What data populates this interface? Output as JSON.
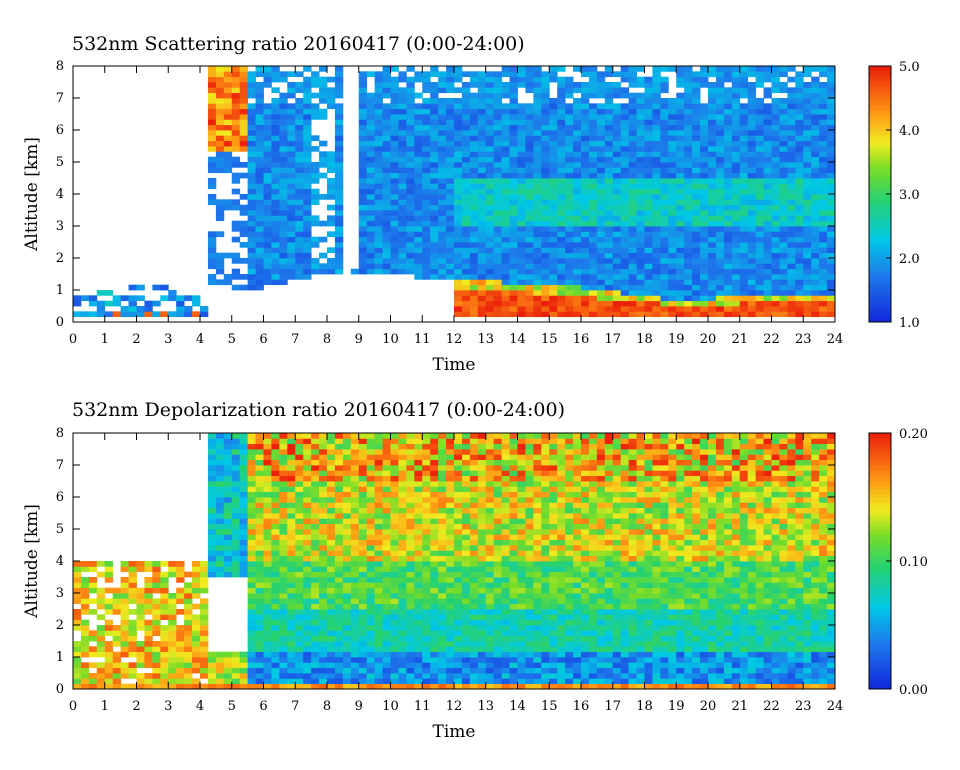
{
  "figure": {
    "panels": 2
  },
  "chart_data": [
    {
      "type": "heatmap",
      "title": "532nm Scattering ratio  20160417 (0:00-24:00)",
      "xlabel": "Time",
      "ylabel": "Altitude [km]",
      "xlim": [
        0,
        24
      ],
      "ylim": [
        0,
        8
      ],
      "xticks": [
        "0",
        "1",
        "2",
        "3",
        "4",
        "5",
        "6",
        "7",
        "8",
        "9",
        "10",
        "11",
        "12",
        "13",
        "14",
        "15",
        "16",
        "17",
        "18",
        "19",
        "20",
        "21",
        "22",
        "23",
        "24"
      ],
      "yticks": [
        "0",
        "1",
        "2",
        "3",
        "4",
        "5",
        "6",
        "7",
        "8"
      ],
      "colorbar": {
        "range": [
          1.0,
          5.0
        ],
        "ticks": [
          "1.0",
          "2.0",
          "3.0",
          "4.0",
          "5.0"
        ],
        "colormap": "rainbow (blue-cyan-green-yellow-orange-red)"
      },
      "features": {
        "boundary_layer_top_km": [
          {
            "time": 0.0,
            "alt": 0.9
          },
          {
            "time": 3.0,
            "alt": 1.2
          },
          {
            "time": 4.3,
            "alt": 1.0
          },
          {
            "time": 5.5,
            "alt": 1.0
          },
          {
            "time": 8.5,
            "alt": 1.6
          },
          {
            "time": 12.0,
            "alt": 1.3
          },
          {
            "time": 15.0,
            "alt": 1.2
          },
          {
            "time": 19.0,
            "alt": 0.7
          },
          {
            "time": 24.0,
            "alt": 0.9
          }
        ],
        "strong_aerosol_layer": "Red/orange band near 0.3-1.0 km between ~12 and 24 h",
        "cloud_top_signal": "High ratio (4-5) near 4-8 km around 4.2-5.5 h"
      }
    },
    {
      "type": "heatmap",
      "title": "532nm Depolarization ratio  20160417 (0:00-24:00)",
      "xlabel": "Time",
      "ylabel": "Altitude [km]",
      "xlim": [
        0,
        24
      ],
      "ylim": [
        0,
        8
      ],
      "xticks": [
        "0",
        "1",
        "2",
        "3",
        "4",
        "5",
        "6",
        "7",
        "8",
        "9",
        "10",
        "11",
        "12",
        "13",
        "14",
        "15",
        "16",
        "17",
        "18",
        "19",
        "20",
        "21",
        "22",
        "23",
        "24"
      ],
      "yticks": [
        "0",
        "1",
        "2",
        "3",
        "4",
        "5",
        "6",
        "7",
        "8"
      ],
      "colorbar": {
        "range": [
          0.0,
          0.2
        ],
        "ticks": [
          "0.00",
          "0.10",
          "0.20"
        ],
        "colormap": "rainbow (blue-cyan-green-yellow-orange-red)"
      },
      "features": {
        "dust_layer": "Green/yellow depolarization 0.08-0.12 from 2 to 8 km after 5.5 h",
        "low_depol_boundary_layer": "Blue/cyan below ~1.5 km after 5.5 h",
        "high_depol_early": "Orange/red 0-4 km during 0-4 h"
      }
    }
  ]
}
